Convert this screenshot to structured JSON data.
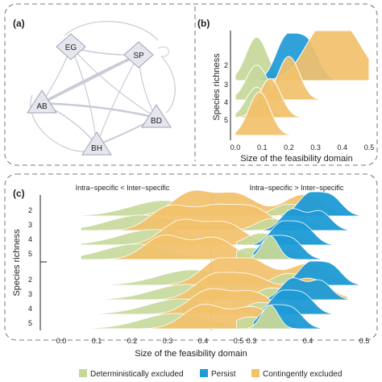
{
  "panels": {
    "a": {
      "label": "(a)"
    },
    "b": {
      "label": "(b)"
    },
    "c": {
      "label": "(c)"
    }
  },
  "network": {
    "nodes": [
      {
        "id": "EG",
        "shape": "diamond"
      },
      {
        "id": "SP",
        "shape": "diamond"
      },
      {
        "id": "AB",
        "shape": "triangle"
      },
      {
        "id": "BD",
        "shape": "triangle"
      },
      {
        "id": "BH",
        "shape": "triangle"
      }
    ],
    "node_fill": "#e6e7ee",
    "node_stroke": "#9ea2b6",
    "edge_color": "#c9cbd6"
  },
  "colors": {
    "deterministically_excluded": "#c5d89a",
    "persist": "#1e9ad6",
    "contingently_excluded": "#f2c16b"
  },
  "legend": {
    "items": [
      {
        "key": "deterministically_excluded",
        "label": "Deterministically excluded"
      },
      {
        "key": "persist",
        "label": "Persist"
      },
      {
        "key": "contingently_excluded",
        "label": "Contingently excluded"
      }
    ]
  },
  "chart_data": [
    {
      "type": "area",
      "panel": "b",
      "kind": "ridgeline",
      "xlabel": "Size of the feasibility domain",
      "ylabel": "Species richness",
      "xlim": [
        0,
        0.5
      ],
      "xticks": [
        "0.0",
        "0.1",
        "0.2",
        "0.3",
        "0.4",
        "0.5"
      ],
      "rows": [
        "2",
        "3",
        "4",
        "5"
      ],
      "series": [
        {
          "row": "2",
          "class": "deterministically_excluded",
          "peaks": [
            0.08
          ],
          "height": 1.0
        },
        {
          "row": "2",
          "class": "persist",
          "peaks": [
            0.19,
            0.27
          ],
          "height": 0.95
        },
        {
          "row": "2",
          "class": "contingently_excluded",
          "peaks": [
            0.32,
            0.42
          ],
          "height": 1.0
        },
        {
          "row": "3",
          "class": "deterministically_excluded",
          "peaks": [
            0.08
          ],
          "height": 0.8
        },
        {
          "row": "3",
          "class": "contingently_excluded",
          "peaks": [
            0.2
          ],
          "height": 1.0
        },
        {
          "row": "4",
          "class": "deterministically_excluded",
          "peaks": [
            0.08
          ],
          "height": 0.7
        },
        {
          "row": "4",
          "class": "contingently_excluded",
          "peaks": [
            0.13
          ],
          "height": 0.9
        },
        {
          "row": "5",
          "class": "contingently_excluded",
          "peaks": [
            0.09
          ],
          "height": 1.0
        }
      ]
    },
    {
      "type": "area",
      "panel": "c",
      "kind": "ridgeline",
      "xlabel": "Size of the feasibility domain",
      "ylabel": "Species richness",
      "xlim": [
        -0.05,
        0.55
      ],
      "xticks": [
        "0.0",
        "0.1",
        "0.2",
        "0.3",
        "0.4",
        "0.5"
      ],
      "facets": [
        {
          "title": "Intra−specific < Inter−specific",
          "column": "left"
        },
        {
          "title": "Intra−specific > Inter−specific",
          "column": "right"
        }
      ],
      "groups": [
        {
          "rows": [
            "2",
            "3",
            "4",
            "5"
          ]
        },
        {
          "rows": [
            "2",
            "3",
            "4",
            "5"
          ]
        }
      ]
    }
  ]
}
